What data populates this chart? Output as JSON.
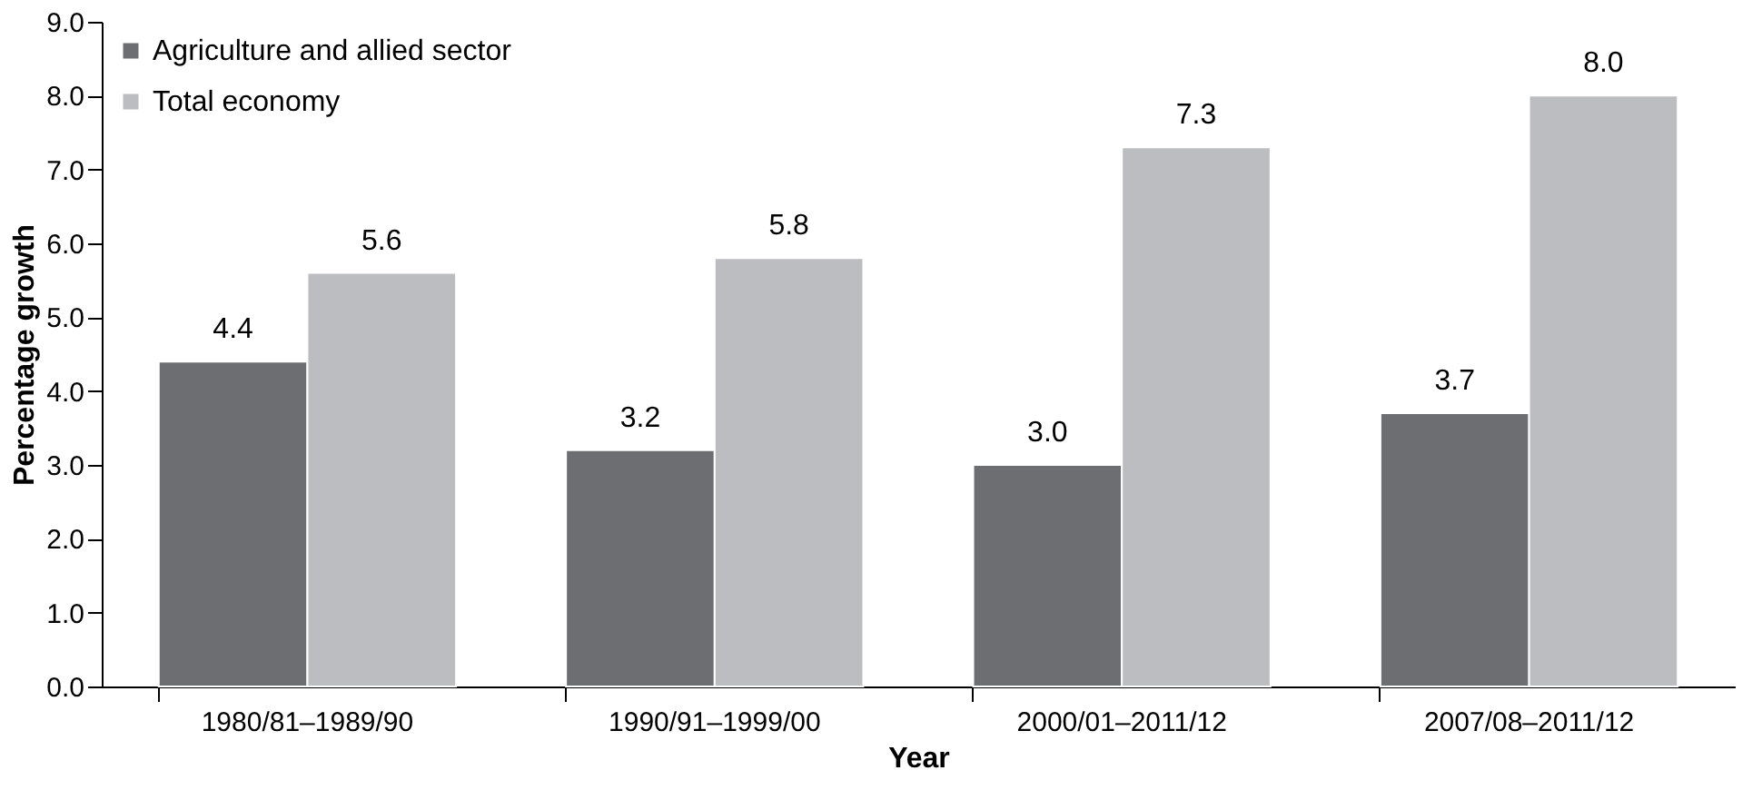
{
  "chart_data": {
    "type": "bar",
    "xlabel": "Year",
    "ylabel": "Percentage growth",
    "categories": [
      "1980/81–1989/90",
      "1990/91–1999/00",
      "2000/01–2011/12",
      "2007/08–2011/12"
    ],
    "series": [
      {
        "name": "Agriculture and allied sector",
        "color": "#6d6e71",
        "values": [
          4.4,
          3.2,
          3.0,
          3.7
        ],
        "value_labels": [
          "4.4",
          "3.2",
          "3.0",
          "3.7"
        ]
      },
      {
        "name": "Total economy",
        "color": "#bcbdc0",
        "values": [
          5.6,
          5.8,
          7.3,
          8.0
        ],
        "value_labels": [
          "5.6",
          "5.8",
          "7.3",
          "8.0"
        ]
      }
    ],
    "ylim": [
      0,
      9
    ],
    "yticks": [
      {
        "value": 0,
        "label": "0.0"
      },
      {
        "value": 1,
        "label": "1.0"
      },
      {
        "value": 2,
        "label": "2.0"
      },
      {
        "value": 3,
        "label": "3.0"
      },
      {
        "value": 4,
        "label": "4.0"
      },
      {
        "value": 5,
        "label": "5.0"
      },
      {
        "value": 6,
        "label": "6.0"
      },
      {
        "value": 7,
        "label": "7.0"
      },
      {
        "value": 8,
        "label": "8.0"
      },
      {
        "value": 9,
        "label": "9.0"
      }
    ],
    "grid": false,
    "legend": "top left"
  }
}
